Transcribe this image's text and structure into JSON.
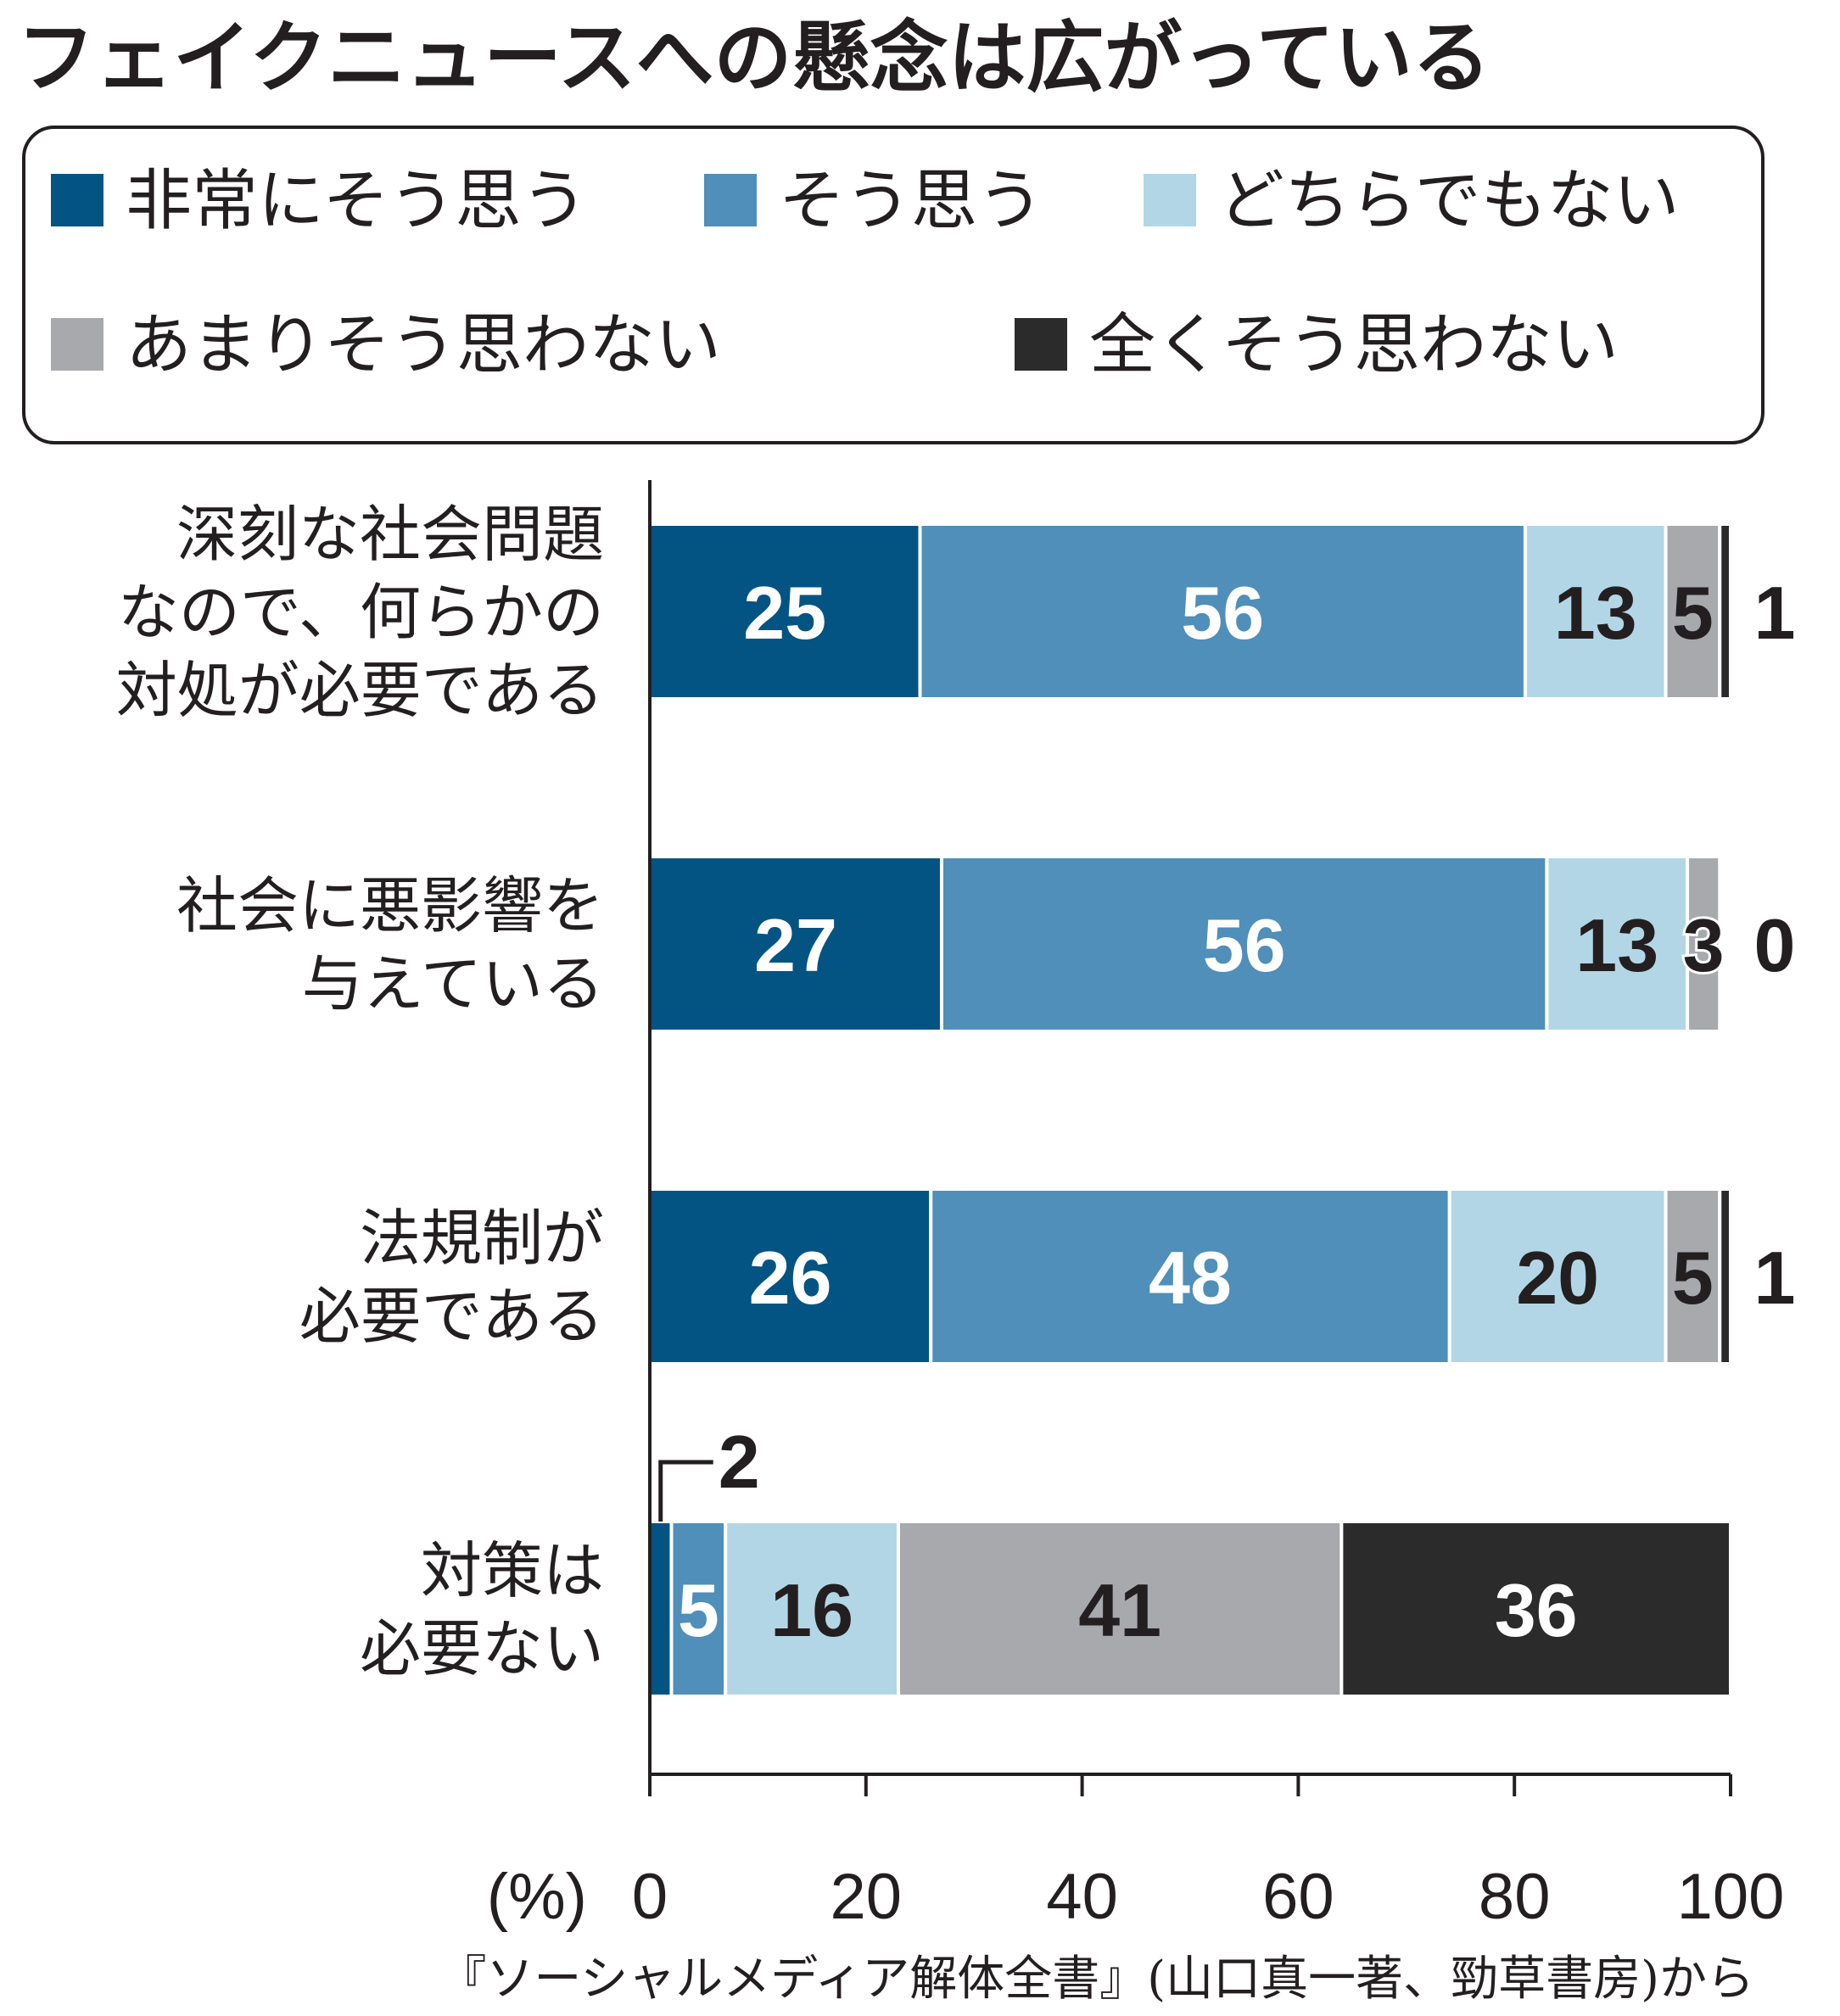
{
  "title": "フェイクニュースへの懸念は広がっている",
  "source": "『ソーシャルメディア解体全書』(山口真一著、勁草書房)から",
  "axis_unit_label": "(%)",
  "chart_data": {
    "type": "bar",
    "orientation": "horizontal",
    "stacked": true,
    "categories": [
      [
        "深刻な社会問題",
        "なので、何らかの",
        "対処が必要である"
      ],
      [
        "社会に悪影響を",
        "与えている"
      ],
      [
        "法規制が",
        "必要である"
      ],
      [
        "対策は",
        "必要ない"
      ]
    ],
    "series": [
      {
        "name": "非常にそう思う",
        "color": "#045483",
        "text_color": "#ffffff",
        "values": [
          25,
          27,
          26,
          2
        ]
      },
      {
        "name": "そう思う",
        "color": "#4f8fb9",
        "text_color": "#ffffff",
        "values": [
          56,
          56,
          48,
          5
        ]
      },
      {
        "name": "どちらでもない",
        "color": "#b3d6e6",
        "text_color": "#231f20",
        "values": [
          13,
          13,
          20,
          16
        ]
      },
      {
        "name": "あまりそう思わない",
        "color": "#a7a9ac",
        "text_color": "#231f20",
        "values": [
          5,
          3,
          5,
          41
        ]
      },
      {
        "name": "全くそう思わない",
        "color": "#2b2b2b",
        "text_color": "#ffffff",
        "values": [
          1,
          0,
          1,
          36
        ]
      }
    ],
    "xlim": [
      0,
      100
    ],
    "xticks": [
      0,
      20,
      40,
      60,
      80,
      100
    ],
    "legend_position": "top",
    "grid": false
  }
}
